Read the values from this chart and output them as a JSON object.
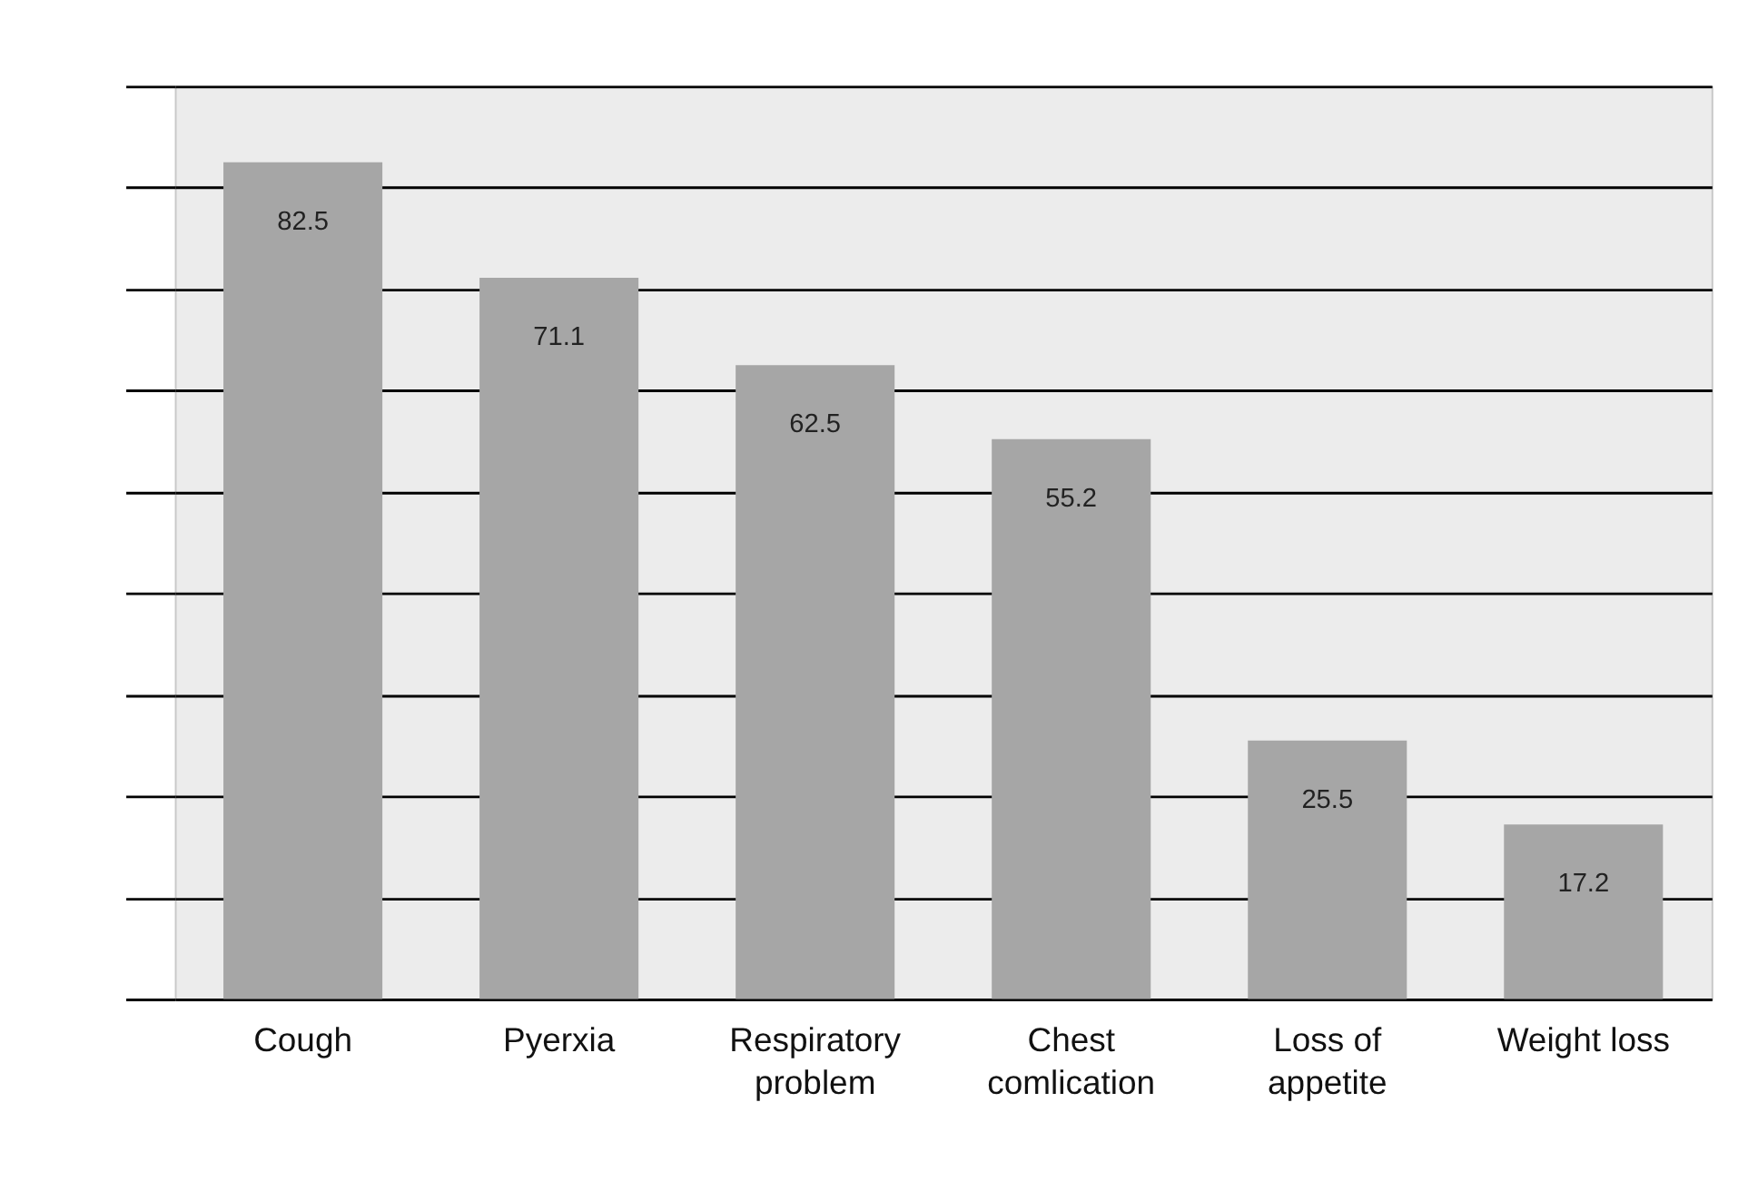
{
  "chart_data": {
    "type": "bar",
    "categories": [
      "Cough",
      "Pyerxia",
      "Respiratory problem",
      "Chest comlication",
      "Loss of appetite",
      "Weight loss"
    ],
    "values": [
      82.5,
      71.1,
      62.5,
      55.2,
      25.5,
      17.2
    ],
    "color": "#a6a6a6",
    "relative": false,
    "ylim": [
      0,
      90
    ],
    "yticks": [
      {
        "value": 0,
        "label": null
      },
      {
        "value": 10,
        "label": null
      },
      {
        "value": 20,
        "label": null
      },
      {
        "value": 30,
        "label": null
      },
      {
        "value": 40,
        "label": null
      },
      {
        "value": 50,
        "label": null
      },
      {
        "value": 60,
        "label": null
      },
      {
        "value": 70,
        "label": null
      },
      {
        "value": 80,
        "label": null
      },
      {
        "value": 90,
        "label": null
      }
    ],
    "tick_labels": "x",
    "grid": "y",
    "data_labels": true
  }
}
